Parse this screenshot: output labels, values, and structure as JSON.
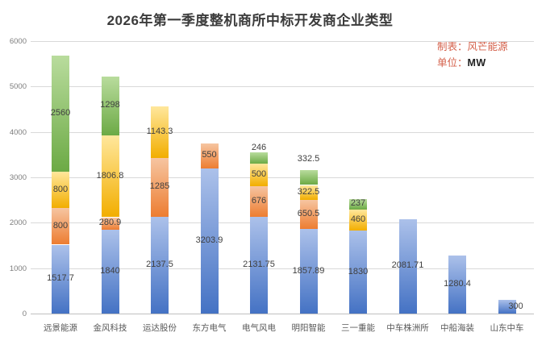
{
  "title": "2026年第一季度整机商所中标开发商企业类型",
  "annotation": {
    "credit": "制表：风芒能源",
    "unit_label": "单位：",
    "unit_value": "MW",
    "color": "#d4604a"
  },
  "chart_data": {
    "type": "bar",
    "stacked": true,
    "title": "2026年第一季度整机商所中标开发商企业类型",
    "unit": "MW",
    "xlabel": "",
    "ylabel": "",
    "categories": [
      "远景能源",
      "金风科技",
      "运达股份",
      "东方电气",
      "电气风电",
      "明阳智能",
      "三一重能",
      "中车株洲所",
      "中船海装",
      "山东中车"
    ],
    "series": [
      {
        "name": "segment-blue",
        "color": "#4472c4",
        "color_light": "#acc1ea",
        "values": [
          1517.7,
          1840,
          2137.5,
          3203.9,
          2131.75,
          1857.89,
          1830,
          2081.71,
          1280.4,
          300
        ]
      },
      {
        "name": "segment-orange",
        "color": "#ed7d31",
        "color_light": "#f6c5a1",
        "values": [
          800,
          280.9,
          1285,
          550,
          676,
          650.5,
          0,
          0,
          0,
          0
        ]
      },
      {
        "name": "segment-yellow",
        "color": "#f2ae00",
        "color_light": "#ffe79c",
        "values": [
          800,
          1806.8,
          1143.3,
          0,
          500,
          322.5,
          460,
          0,
          0,
          0
        ]
      },
      {
        "name": "segment-green",
        "color": "#6caa45",
        "color_light": "#b9dc9d",
        "values": [
          2560,
          1298,
          0,
          0,
          246,
          332.5,
          237,
          0,
          0,
          0
        ]
      }
    ],
    "totals": [
      5677.7,
      5225.7,
      4565.8,
      3753.9,
      3553.75,
      3163.39,
      2527,
      2081.71,
      1280.4,
      300
    ],
    "ylim": [
      0,
      6000
    ],
    "yticks": [
      0,
      1000,
      2000,
      3000,
      4000,
      5000,
      6000
    ],
    "grid": true,
    "legend": false,
    "value_labels": "on-segment-center"
  }
}
